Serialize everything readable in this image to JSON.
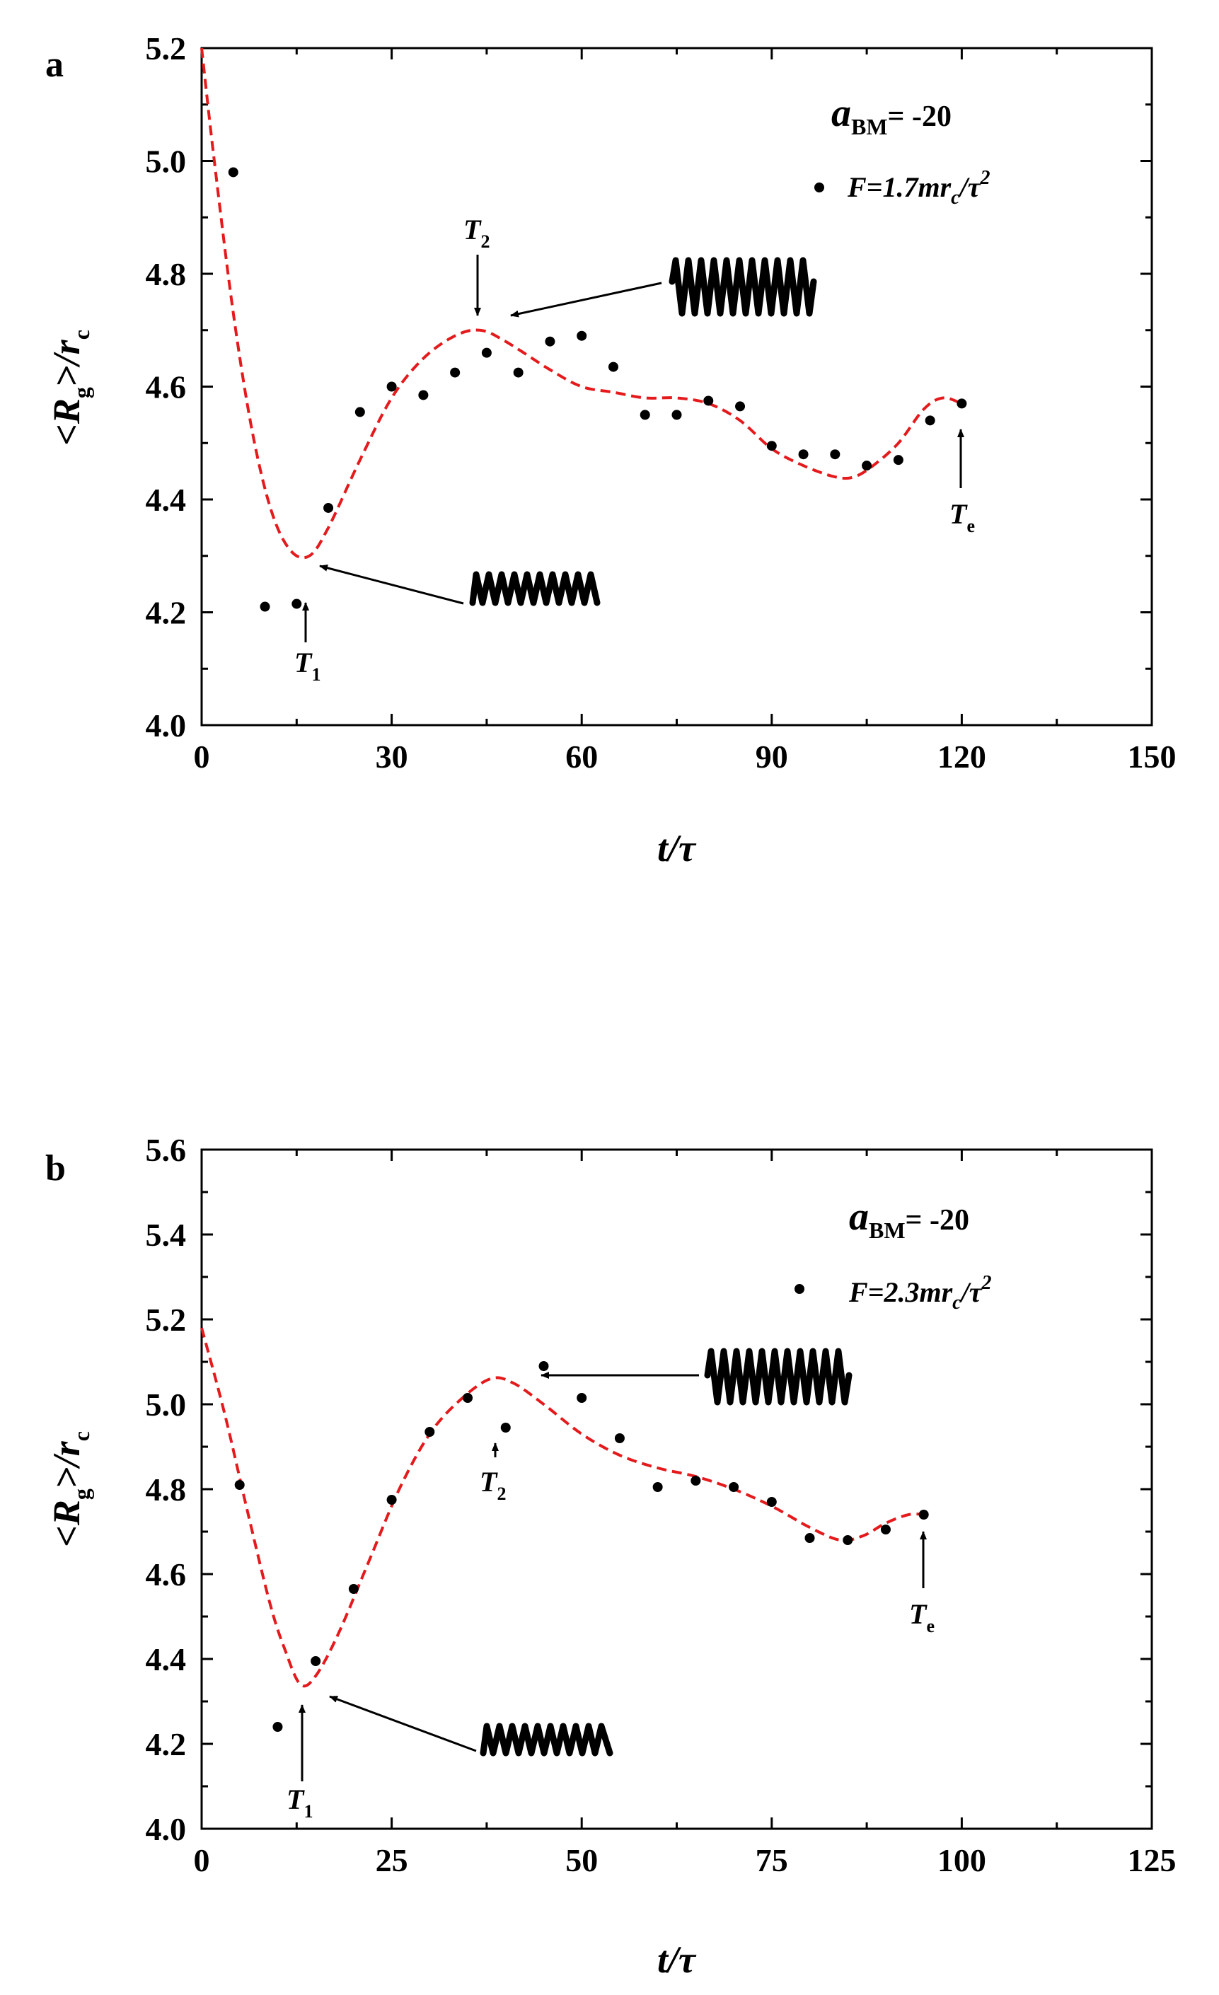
{
  "chart_data": [
    {
      "type": "scatter",
      "panel_label": "a",
      "xlabel": "t/τ",
      "ylabel": "<Rg>/rc",
      "xlim": [
        0,
        150
      ],
      "ylim": [
        4.0,
        5.2
      ],
      "xticks": [
        "0",
        "30",
        "60",
        "90",
        "120",
        "150"
      ],
      "yticks": [
        "4.0",
        "4.2",
        "4.4",
        "4.6",
        "4.8",
        "5.0",
        "5.2"
      ],
      "legend": {
        "param": "a",
        "param_sub": "BM",
        "param_value": "= -20",
        "force_label": "F=1.7mr",
        "force_sub": "c",
        "force_tail": "/τ",
        "force_sup": "2"
      },
      "series": [
        {
          "name": "simulation points",
          "x": [
            5,
            10,
            15,
            20,
            25,
            30,
            35,
            40,
            45,
            50,
            55,
            60,
            65,
            70,
            75,
            80,
            85,
            90,
            95,
            100,
            105,
            110,
            115,
            120
          ],
          "y": [
            4.98,
            4.21,
            4.215,
            4.385,
            4.555,
            4.6,
            4.585,
            4.625,
            4.66,
            4.625,
            4.68,
            4.69,
            4.635,
            4.55,
            4.55,
            4.575,
            4.565,
            4.495,
            4.48,
            4.48,
            4.46,
            4.47,
            4.54,
            4.57
          ]
        },
        {
          "name": "fit curve",
          "x": [
            0,
            2,
            5,
            8,
            11,
            14,
            17,
            20,
            25,
            30,
            35,
            40,
            44,
            48,
            55,
            60,
            65,
            70,
            75,
            80,
            85,
            90,
            95,
            100,
            103,
            106,
            110,
            114,
            117,
            120
          ],
          "y": [
            5.2,
            5.0,
            4.73,
            4.52,
            4.38,
            4.31,
            4.3,
            4.35,
            4.47,
            4.58,
            4.65,
            4.69,
            4.7,
            4.68,
            4.63,
            4.6,
            4.59,
            4.58,
            4.58,
            4.57,
            4.54,
            4.49,
            4.46,
            4.44,
            4.44,
            4.46,
            4.5,
            4.56,
            4.58,
            4.57
          ]
        }
      ],
      "markers": [
        {
          "label": "T",
          "sub": "1",
          "x": 17,
          "y": 4.3
        },
        {
          "label": "T",
          "sub": "2",
          "x": 44,
          "y": 4.7
        },
        {
          "label": "T",
          "sub": "e",
          "x": 120,
          "y": 4.57
        }
      ]
    },
    {
      "type": "scatter",
      "panel_label": "b",
      "xlabel": "t/τ",
      "ylabel": "<Rg>/rc",
      "xlim": [
        0,
        125
      ],
      "ylim": [
        4.0,
        5.6
      ],
      "xticks": [
        "0",
        "25",
        "50",
        "75",
        "100",
        "125"
      ],
      "yticks": [
        "4.0",
        "4.2",
        "4.4",
        "4.6",
        "4.8",
        "5.0",
        "5.2",
        "5.4",
        "5.6"
      ],
      "legend": {
        "param": "a",
        "param_sub": "BM",
        "param_value": "= -20",
        "force_label": "F=2.3mr",
        "force_sub": "c",
        "force_tail": "/τ",
        "force_sup": "2"
      },
      "series": [
        {
          "name": "simulation points",
          "x": [
            5,
            10,
            15,
            20,
            25,
            30,
            35,
            40,
            45,
            50,
            55,
            60,
            65,
            70,
            75,
            80,
            85,
            90,
            95
          ],
          "y": [
            4.81,
            4.24,
            4.395,
            4.565,
            4.775,
            4.935,
            5.015,
            4.945,
            5.09,
            5.015,
            4.92,
            4.805,
            4.82,
            4.805,
            4.77,
            4.685,
            4.68,
            4.705,
            4.74
          ]
        },
        {
          "name": "fit curve",
          "x": [
            0,
            3,
            6,
            9,
            11,
            13,
            15,
            18,
            22,
            26,
            30,
            34,
            38,
            41,
            45,
            50,
            55,
            60,
            65,
            70,
            75,
            80,
            84,
            87,
            90,
            93,
            95
          ],
          "y": [
            5.18,
            4.98,
            4.75,
            4.53,
            4.42,
            4.34,
            4.36,
            4.46,
            4.63,
            4.8,
            4.93,
            5.01,
            5.06,
            5.05,
            5.0,
            4.93,
            4.88,
            4.85,
            4.83,
            4.8,
            4.76,
            4.71,
            4.68,
            4.69,
            4.72,
            4.74,
            4.74
          ]
        }
      ],
      "markers": [
        {
          "label": "T",
          "sub": "1",
          "x": 13,
          "y": 4.34
        },
        {
          "label": "T",
          "sub": "2",
          "x": 38,
          "y": 5.06
        },
        {
          "label": "T",
          "sub": "e",
          "x": 95,
          "y": 4.74
        }
      ]
    }
  ]
}
